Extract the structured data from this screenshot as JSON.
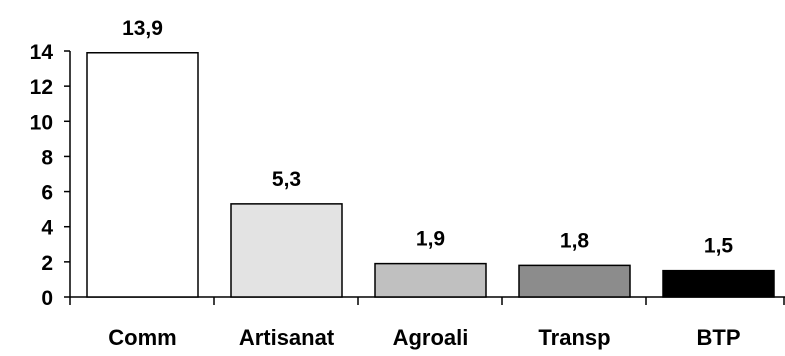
{
  "chart_data": {
    "type": "bar",
    "categories": [
      "Comm",
      "Artisanat",
      "Agroali",
      "Transp",
      "BTP"
    ],
    "values": [
      13.9,
      5.3,
      1.9,
      1.8,
      1.5
    ],
    "value_labels": [
      "13,9",
      "5,3",
      "1,9",
      "1,8",
      "1,5"
    ],
    "bar_colors": [
      "#ffffff",
      "#e3e3e3",
      "#c0c0c0",
      "#8c8c8c",
      "#000000"
    ],
    "ylim": [
      0,
      14
    ],
    "yticks": [
      0,
      2,
      4,
      6,
      8,
      10,
      12,
      14
    ],
    "ytick_labels": [
      "0",
      "2",
      "4",
      "6",
      "8",
      "10",
      "12",
      "14"
    ],
    "title": "",
    "xlabel": "",
    "ylabel": "",
    "grid": false,
    "legend": "none"
  }
}
